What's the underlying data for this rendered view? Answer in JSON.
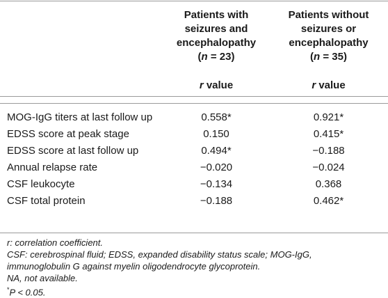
{
  "header": {
    "col1": [
      "Patients with",
      "seizures and",
      "encephalopathy",
      "(n = 23)"
    ],
    "col2": [
      "Patients without",
      "seizures or",
      "encephalopathy",
      "(n = 35)"
    ],
    "subheader_r": "r",
    "subheader_value": "value"
  },
  "rows": [
    {
      "label": "MOG-IgG titers at last follow up",
      "v1": "0.558*",
      "v2": "0.921*"
    },
    {
      "label": "EDSS score at peak stage",
      "v1": "0.150",
      "v2": "0.415*"
    },
    {
      "label": "EDSS score at last follow up",
      "v1": "0.494*",
      "v2": "−0.188"
    },
    {
      "label": "Annual relapse rate",
      "v1": "−0.020",
      "v2": "−0.024"
    },
    {
      "label": "CSF leukocyte",
      "v1": "−0.134",
      "v2": "0.368"
    },
    {
      "label": "CSF total protein",
      "v1": "−0.188",
      "v2": "0.462*"
    }
  ],
  "footnotes": {
    "line1": "r: correlation coefficient.",
    "line2": "CSF: cerebrospinal fluid; EDSS, expanded disability status scale; MOG-IgG,",
    "line3": "immunoglobulin G against myelin oligodendrocyte glycoprotein.",
    "line4": "NA, not available.",
    "star": "*",
    "line5": "P < 0.05."
  }
}
